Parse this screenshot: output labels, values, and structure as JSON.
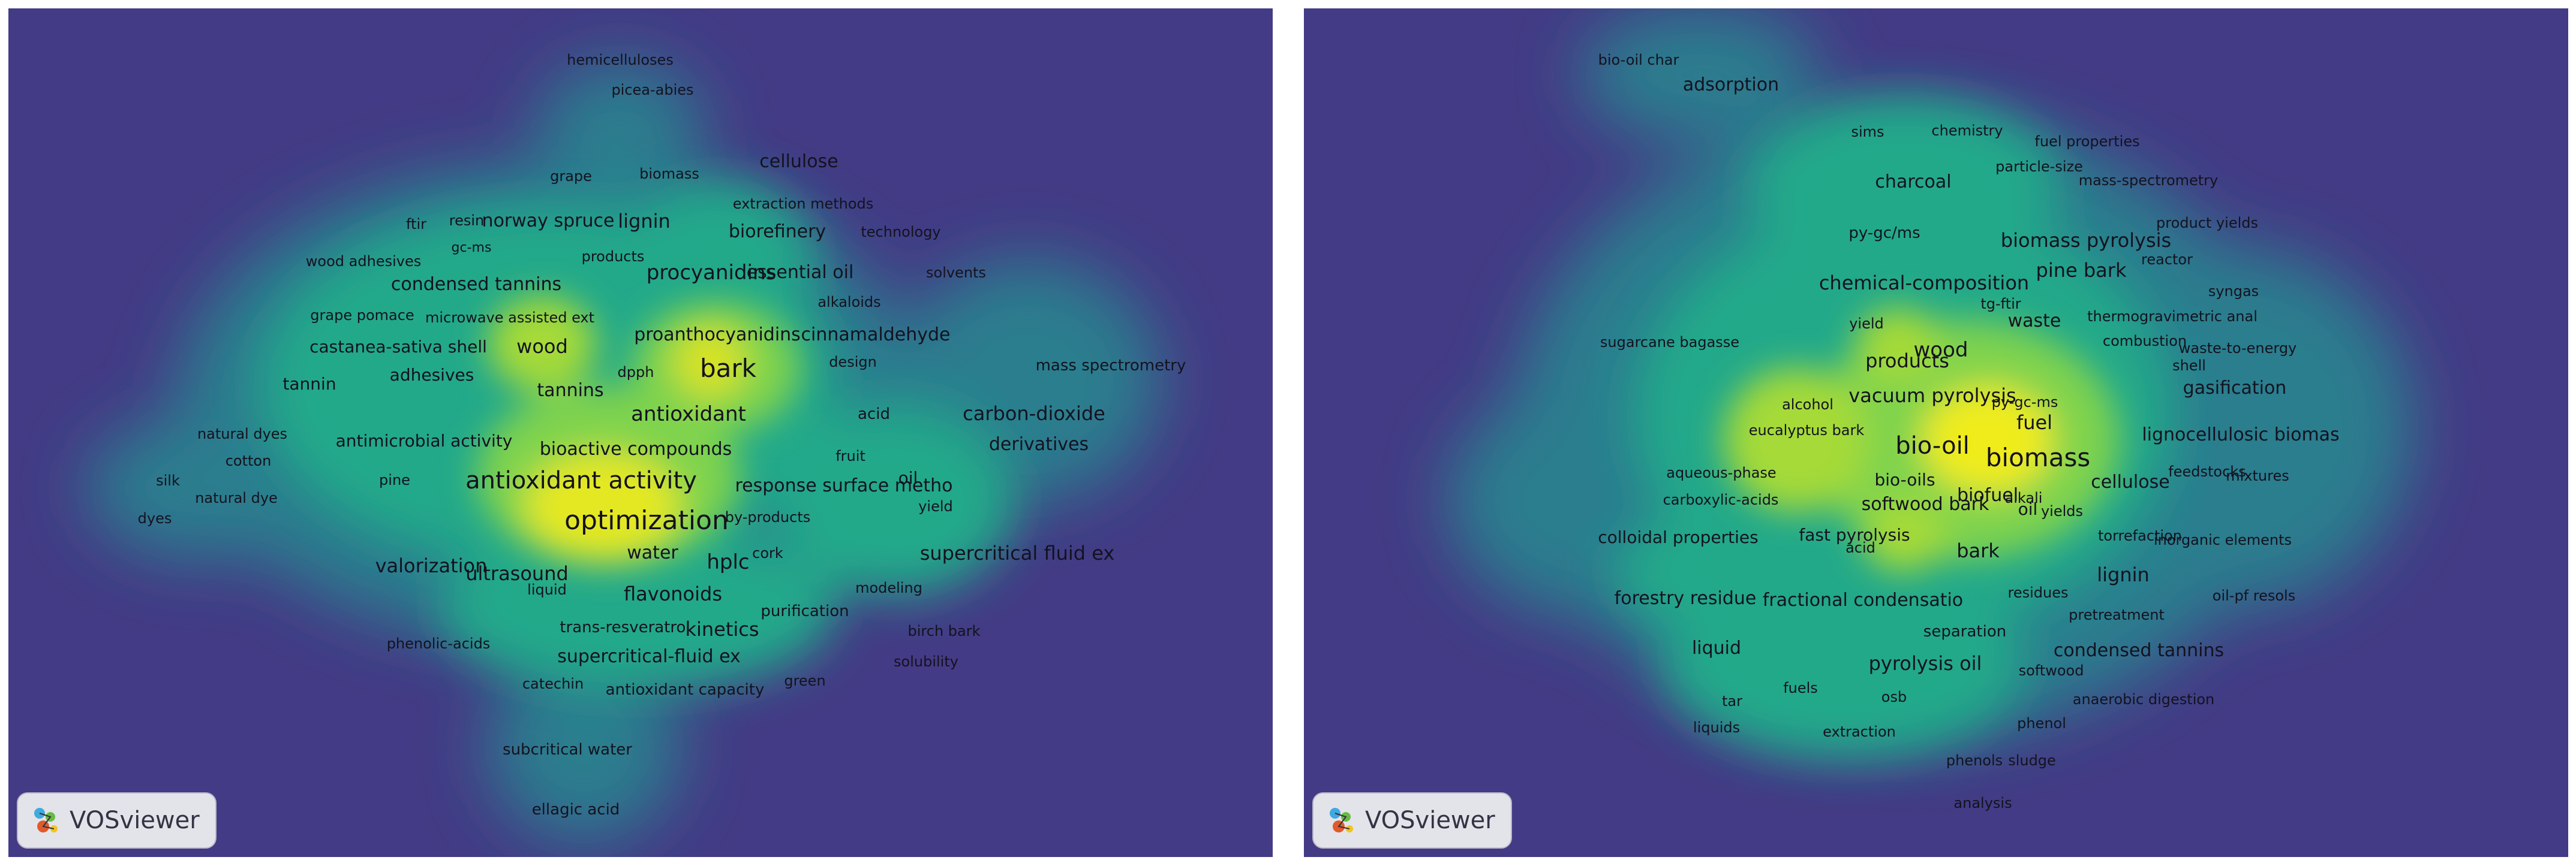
{
  "brand": {
    "name": "VOSviewer",
    "icon": "vosviewer-logo-icon"
  },
  "colors": {
    "background": "#433b85",
    "density_low": "#2a7e8e",
    "density_mid": "#22b58a",
    "density_high": "#f2ec1e",
    "text": "#14121f"
  },
  "maps": [
    {
      "id": "left",
      "terms": [
        "hemicelluloses",
        "picea-abies",
        "grape",
        "biomass",
        "cellulose",
        "extraction methods",
        "ftir",
        "resin",
        "norway spruce",
        "lignin",
        "biorefinery",
        "technology",
        "gc-ms",
        "wood adhesives",
        "products",
        "condensed tannins",
        "procyanidins",
        "essential oil",
        "solvents",
        "alkaloids",
        "grape pomace",
        "microwave assisted ext",
        "castanea-sativa shell",
        "wood",
        "proanthocyanidins",
        "cinnamaldehyde",
        "dpph",
        "bark",
        "design",
        "mass spectrometry",
        "tannin",
        "adhesives",
        "tannins",
        "antioxidant",
        "acid",
        "carbon-dioxide",
        "natural dyes",
        "antimicrobial activity",
        "bioactive compounds",
        "fruit",
        "derivatives",
        "cotton",
        "silk",
        "pine",
        "antioxidant activity",
        "response surface metho",
        "oil",
        "natural dye",
        "yield",
        "dyes",
        "by-products",
        "optimization",
        "ultrasound",
        "cork",
        "supercritical fluid ex",
        "water",
        "hplc",
        "valorization",
        "liquid",
        "flavonoids",
        "modeling",
        "purification",
        "trans-resveratrol",
        "kinetics",
        "birch bark",
        "phenolic-acids",
        "supercritical-fluid ex",
        "solubility",
        "catechin",
        "antioxidant capacity",
        "green",
        "subcritical water",
        "ellagic acid"
      ]
    },
    {
      "id": "right",
      "terms": [
        "bio-oil char",
        "adsorption",
        "sims",
        "chemistry",
        "fuel properties",
        "particle-size",
        "charcoal",
        "mass-spectrometry",
        "product yields",
        "py-gc/ms",
        "biomass pyrolysis",
        "reactor",
        "pine bark",
        "chemical-composition",
        "syngas",
        "tg-ftir",
        "waste",
        "thermogravimetric anal",
        "yield",
        "combustion",
        "sugarcane bagasse",
        "wood",
        "waste-to-energy",
        "shell",
        "products",
        "vacuum pyrolysis",
        "gasification",
        "alcohol",
        "py-gc-ms",
        "fuel",
        "eucalyptus bark",
        "lignocellulosic biomas",
        "bio-oil",
        "biomass",
        "aqueous-phase",
        "feedstocks",
        "mixtures",
        "bio-oils",
        "cellulose",
        "carboxylic-acids",
        "biofuel",
        "alkali",
        "softwood bark",
        "oil",
        "yields",
        "colloidal properties",
        "fast pyrolysis",
        "torrefaction",
        "inorganic elements",
        "acid",
        "bark",
        "lignin",
        "forestry residue",
        "oil-pf resols",
        "fractional condensatio",
        "residues",
        "pretreatment",
        "separation",
        "liquid",
        "condensed tannins",
        "pyrolysis oil",
        "softwood",
        "fuels",
        "osb",
        "anaerobic digestion",
        "tar",
        "phenol",
        "liquids",
        "extraction",
        "phenols",
        "sludge",
        "analysis"
      ]
    }
  ]
}
